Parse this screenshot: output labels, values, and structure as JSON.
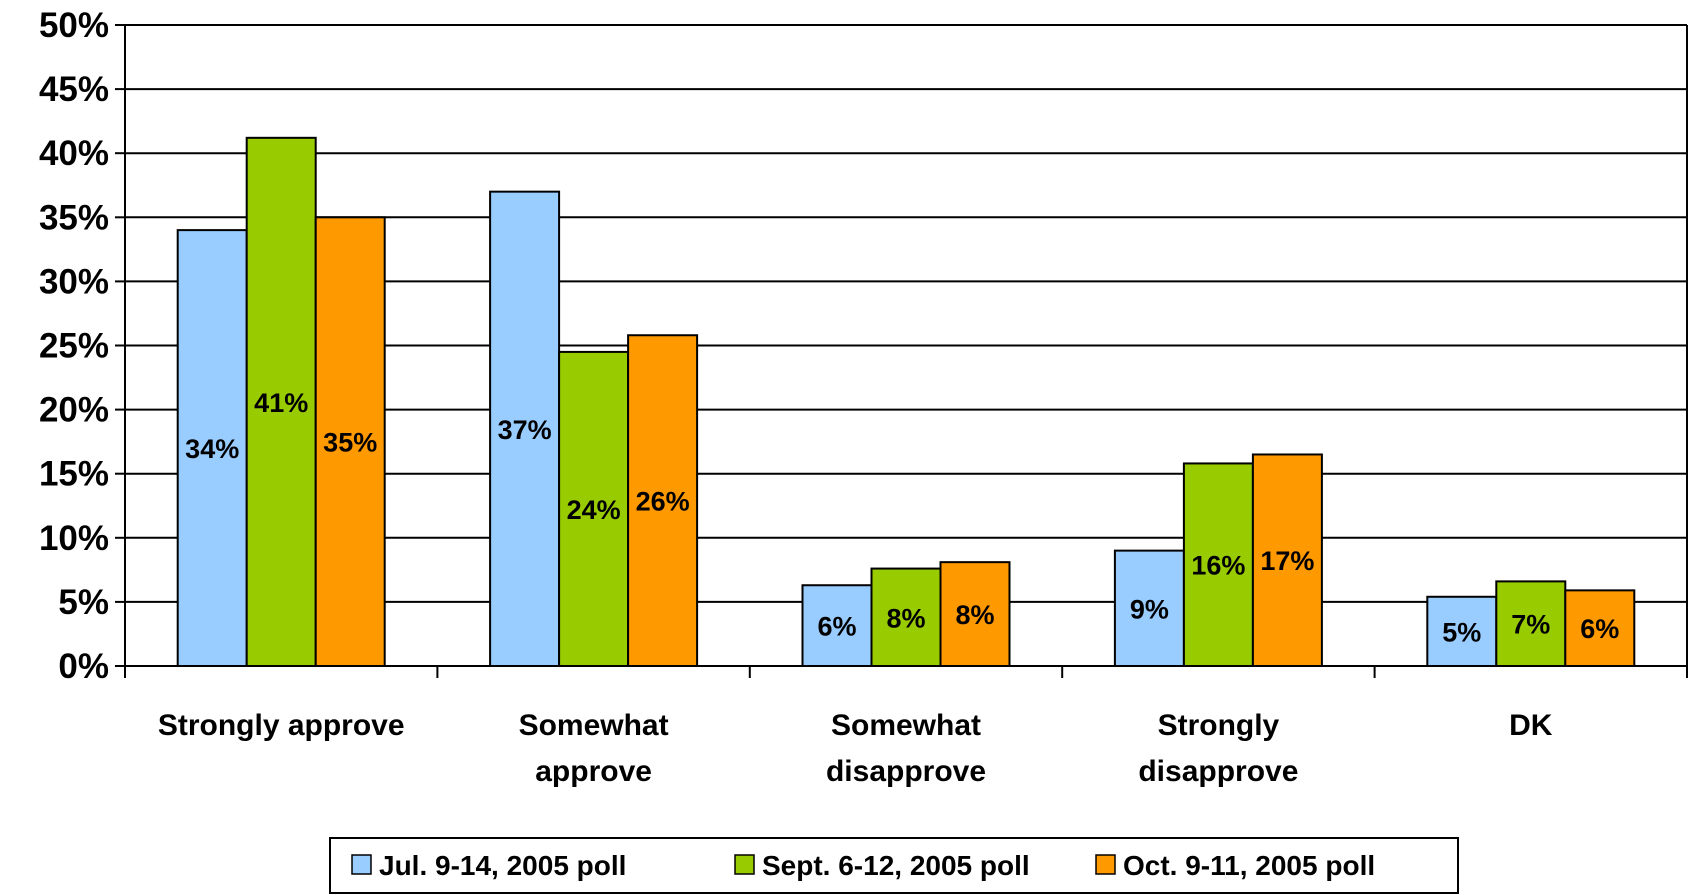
{
  "chart_data": {
    "type": "bar",
    "categories": [
      [
        "Strongly approve"
      ],
      [
        "Somewhat",
        "approve"
      ],
      [
        "Somewhat",
        "disapprove"
      ],
      [
        "Strongly",
        "disapprove"
      ],
      [
        "DK"
      ]
    ],
    "series": [
      {
        "name": "Jul. 9-14, 2005 poll",
        "color": "#99ccff",
        "values": [
          34,
          37,
          6.3,
          9,
          5.4
        ],
        "labels": [
          "34%",
          "37%",
          "6%",
          "9%",
          "5%"
        ]
      },
      {
        "name": "Sept. 6-12, 2005 poll",
        "color": "#99cc00",
        "values": [
          41.2,
          24.5,
          7.6,
          15.8,
          6.6
        ],
        "labels": [
          "41%",
          "24%",
          "8%",
          "16%",
          "7%"
        ]
      },
      {
        "name": "Oct. 9-11, 2005 poll",
        "color": "#ff9900",
        "values": [
          35,
          25.8,
          8.1,
          16.5,
          5.9
        ],
        "labels": [
          "35%",
          "26%",
          "8%",
          "17%",
          "6%"
        ]
      }
    ],
    "yticks": [
      "0%",
      "5%",
      "10%",
      "15%",
      "20%",
      "25%",
      "30%",
      "35%",
      "40%",
      "45%",
      "50%"
    ],
    "ylim": [
      0,
      50
    ],
    "grid": true,
    "legend": "bottom"
  }
}
